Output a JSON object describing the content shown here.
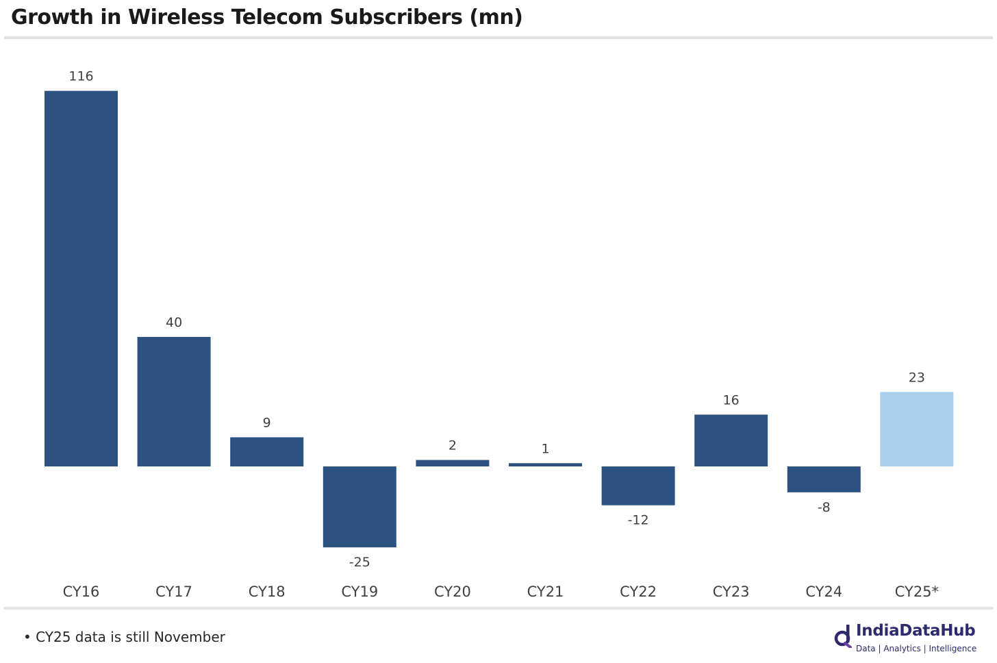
{
  "header": {
    "title": "Growth in Wireless Telecom Subscribers (mn)"
  },
  "footer": {
    "note": "• CY25 data is still November",
    "logo_name": "IndiaDataHub",
    "logo_tagline": "Data | Analytics | Intelligence"
  },
  "colors": {
    "bar": "#2c5282",
    "bar_highlight": "#aad0ee",
    "rule": "#e3e3e3"
  },
  "chart_data": {
    "type": "bar",
    "title": "Growth in Wireless Telecom Subscribers (mn)",
    "categories": [
      "CY16",
      "CY17",
      "CY18",
      "CY19",
      "CY20",
      "CY21",
      "CY22",
      "CY23",
      "CY24",
      "CY25*"
    ],
    "values": [
      116,
      40,
      9,
      -25,
      2,
      1,
      -12,
      16,
      -8,
      23
    ],
    "highlight": [
      "CY25*"
    ],
    "ylim": [
      -25,
      116
    ],
    "grid": false,
    "legend": "none",
    "xlabel": "",
    "ylabel": ""
  }
}
